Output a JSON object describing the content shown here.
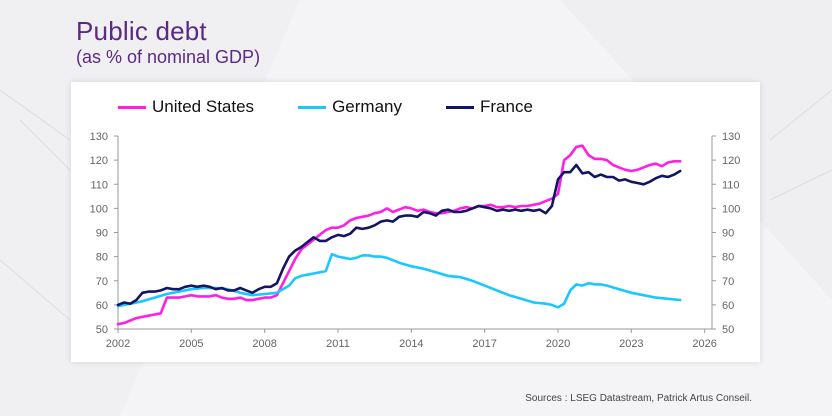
{
  "title": "Public debt",
  "subtitle": "(as % of nominal GDP)",
  "source": "Sources : LSEG Datastream, Patrick Artus Conseil.",
  "chart_data": {
    "type": "line",
    "title": "Public debt",
    "subtitle": "(as % of nominal GDP)",
    "xlabel": "",
    "ylabel": "",
    "xlim": [
      2002,
      2026.3
    ],
    "ylim": [
      50,
      130
    ],
    "x_ticks": [
      2002,
      2005,
      2008,
      2011,
      2014,
      2017,
      2020,
      2023,
      2026
    ],
    "y_ticks": [
      50,
      60,
      70,
      80,
      90,
      100,
      110,
      120,
      130
    ],
    "dual_y_axis": true,
    "grid": false,
    "legend_position": "top",
    "series": [
      {
        "name": "United States",
        "color": "#ff1ee6",
        "x": [
          2002.0,
          2002.25,
          2002.5,
          2002.75,
          2003.0,
          2003.25,
          2003.5,
          2003.75,
          2004.0,
          2004.5,
          2004.75,
          2005.0,
          2005.25,
          2005.5,
          2005.75,
          2006.0,
          2006.25,
          2006.5,
          2006.75,
          2007.0,
          2007.25,
          2007.5,
          2007.75,
          2008.0,
          2008.25,
          2008.5,
          2008.75,
          2009.0,
          2009.25,
          2009.5,
          2009.75,
          2010.0,
          2010.25,
          2010.5,
          2010.75,
          2011.0,
          2011.25,
          2011.5,
          2011.75,
          2012.0,
          2012.25,
          2012.5,
          2012.75,
          2013.0,
          2013.25,
          2013.5,
          2013.75,
          2014.0,
          2014.25,
          2014.5,
          2014.75,
          2015.0,
          2015.25,
          2015.5,
          2015.75,
          2016.0,
          2016.25,
          2016.5,
          2016.75,
          2017.0,
          2017.25,
          2017.5,
          2017.75,
          2018.0,
          2018.25,
          2018.5,
          2018.75,
          2019.0,
          2019.25,
          2019.5,
          2019.75,
          2020.0,
          2020.25,
          2020.5,
          2020.75,
          2021.0,
          2021.25,
          2021.5,
          2021.75,
          2022.0,
          2022.25,
          2022.5,
          2022.75,
          2023.0,
          2023.25,
          2023.5,
          2023.75,
          2024.0,
          2024.25,
          2024.5,
          2024.75,
          2025.0
        ],
        "values": [
          52,
          52.5,
          53.5,
          54.5,
          55,
          55.5,
          56,
          56.5,
          63,
          63,
          63.5,
          64,
          63.5,
          63.5,
          63.5,
          64,
          63,
          62.5,
          62.5,
          63,
          62,
          62,
          62.5,
          63,
          63,
          64,
          69,
          74,
          79,
          83,
          85,
          87,
          89,
          91,
          92,
          92,
          93,
          95,
          96,
          96.5,
          97,
          98,
          98.5,
          100,
          98.5,
          99.5,
          100.5,
          100,
          99,
          99.5,
          98.5,
          98,
          98,
          98.5,
          99,
          100,
          100.5,
          100,
          101,
          101,
          101.5,
          100.5,
          100.5,
          101,
          100.5,
          101,
          101,
          101.5,
          102,
          103,
          104,
          106,
          120,
          122,
          125.5,
          126,
          122,
          120.5,
          120.5,
          120,
          118,
          117,
          116,
          115.5,
          116,
          117,
          118,
          118.5,
          117.5,
          119,
          119.5,
          119.5
        ]
      },
      {
        "name": "Germany",
        "color": "#19c8ff",
        "x": [
          2002.0,
          2002.5,
          2003.0,
          2003.5,
          2004.0,
          2004.5,
          2005.0,
          2005.5,
          2006.0,
          2006.5,
          2007.0,
          2007.5,
          2008.0,
          2008.5,
          2009.0,
          2009.25,
          2009.5,
          2009.75,
          2010.0,
          2010.25,
          2010.5,
          2010.75,
          2011.0,
          2011.25,
          2011.5,
          2011.75,
          2012.0,
          2012.25,
          2012.5,
          2012.75,
          2013.0,
          2013.5,
          2014.0,
          2014.5,
          2015.0,
          2015.5,
          2016.0,
          2016.5,
          2017.0,
          2017.5,
          2018.0,
          2018.5,
          2019.0,
          2019.5,
          2019.75,
          2020.0,
          2020.25,
          2020.5,
          2020.75,
          2021.0,
          2021.25,
          2021.5,
          2021.75,
          2022.0,
          2022.5,
          2023.0,
          2023.5,
          2024.0,
          2024.5,
          2025.0
        ],
        "values": [
          59.5,
          60.5,
          61.5,
          63,
          64.5,
          65.5,
          66.5,
          67,
          67,
          66.5,
          65,
          64,
          64.5,
          65,
          68,
          71,
          72,
          72.5,
          73,
          73.5,
          74,
          81,
          80,
          79.5,
          79,
          79.5,
          80.5,
          80.5,
          80,
          80,
          79.5,
          77.5,
          76,
          75,
          73.5,
          72,
          71.5,
          70,
          68,
          66,
          64,
          62.5,
          61,
          60.5,
          60,
          59,
          60.5,
          66,
          68.5,
          68,
          69,
          68.5,
          68.5,
          68,
          66.5,
          65,
          64,
          63,
          62.5,
          62
        ]
      },
      {
        "name": "France",
        "color": "#141464",
        "x": [
          2002.0,
          2002.25,
          2002.5,
          2002.75,
          2003.0,
          2003.25,
          2003.5,
          2003.75,
          2004.0,
          2004.25,
          2004.5,
          2004.75,
          2005.0,
          2005.25,
          2005.5,
          2005.75,
          2006.0,
          2006.25,
          2006.5,
          2006.75,
          2007.0,
          2007.25,
          2007.5,
          2007.75,
          2008.0,
          2008.25,
          2008.5,
          2008.75,
          2009.0,
          2009.25,
          2009.5,
          2009.75,
          2010.0,
          2010.25,
          2010.5,
          2010.75,
          2011.0,
          2011.25,
          2011.5,
          2011.75,
          2012.0,
          2012.25,
          2012.5,
          2012.75,
          2013.0,
          2013.25,
          2013.5,
          2013.75,
          2014.0,
          2014.25,
          2014.5,
          2014.75,
          2015.0,
          2015.25,
          2015.5,
          2015.75,
          2016.0,
          2016.25,
          2016.5,
          2016.75,
          2017.0,
          2017.25,
          2017.5,
          2017.75,
          2018.0,
          2018.25,
          2018.5,
          2018.75,
          2019.0,
          2019.25,
          2019.5,
          2019.75,
          2020.0,
          2020.25,
          2020.5,
          2020.75,
          2021.0,
          2021.25,
          2021.5,
          2021.75,
          2022.0,
          2022.25,
          2022.5,
          2022.75,
          2023.0,
          2023.25,
          2023.5,
          2023.75,
          2024.0,
          2024.25,
          2024.5,
          2024.75,
          2025.0
        ],
        "values": [
          60,
          61,
          60.5,
          62,
          65,
          65.5,
          65.5,
          66,
          67,
          66.5,
          66.5,
          67.5,
          68,
          67.5,
          68,
          67.5,
          66.5,
          67,
          66,
          66,
          67,
          66,
          65,
          66.5,
          67.5,
          67.5,
          69,
          75,
          80,
          82.5,
          84,
          86,
          88,
          86.5,
          86.5,
          88,
          89,
          88.5,
          89.5,
          92,
          91.5,
          92,
          93,
          94.5,
          95,
          94.5,
          96.5,
          97,
          97,
          96.5,
          98.5,
          98,
          97,
          99,
          99.5,
          98.5,
          98.5,
          99,
          100,
          101,
          100.5,
          100,
          99,
          99.5,
          99,
          99.5,
          99,
          99.5,
          99,
          99.5,
          98,
          101,
          112,
          115,
          115,
          118,
          114.5,
          115,
          113,
          114,
          113,
          113,
          111.5,
          112,
          111,
          110.5,
          110,
          111,
          112.5,
          113.5,
          113,
          114,
          115.5
        ]
      }
    ]
  }
}
